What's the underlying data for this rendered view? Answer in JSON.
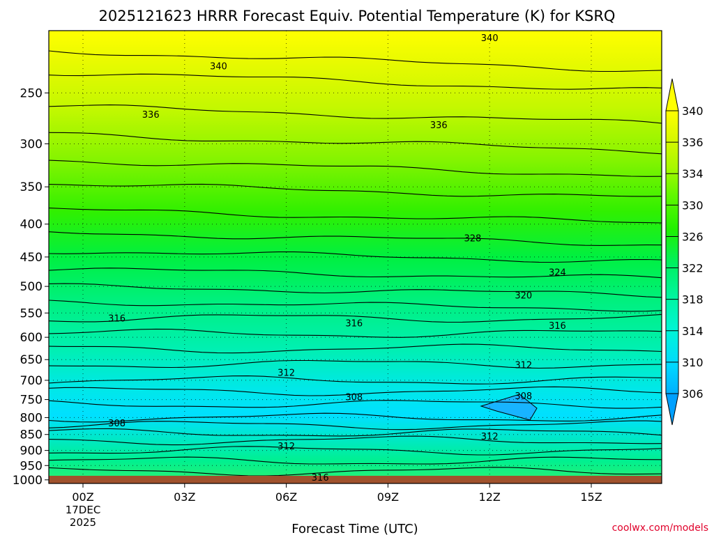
{
  "chart_data": {
    "type": "heatmap",
    "title": "2025121623 HRRR Forecast Equiv. Potential Temperature (K) for KSRQ",
    "xlabel": "Forecast Time (UTC)",
    "ylabel": "",
    "credit": "coolwx.com/models",
    "x_ticks": [
      {
        "label": "00Z",
        "hour": 0
      },
      {
        "label": "03Z",
        "hour": 3
      },
      {
        "label": "06Z",
        "hour": 6
      },
      {
        "label": "09Z",
        "hour": 9
      },
      {
        "label": "12Z",
        "hour": 12
      },
      {
        "label": "15Z",
        "hour": 15
      }
    ],
    "x_date_lines": [
      "17DEC",
      "2025"
    ],
    "xlim": [
      -1,
      17
    ],
    "y_ticks": [
      250,
      300,
      350,
      400,
      450,
      500,
      550,
      600,
      650,
      700,
      750,
      800,
      850,
      900,
      950,
      1000
    ],
    "y_scale": "log",
    "ylim": [
      1013,
      200
    ],
    "grid": true,
    "colorbar": {
      "position": "right",
      "labels": [
        "306",
        "310",
        "314",
        "318",
        "322",
        "326",
        "330",
        "334",
        "336",
        "340"
      ],
      "colors": [
        "#00b0ff",
        "#00e0ff",
        "#00f5d0",
        "#00f5a0",
        "#00f060",
        "#20f000",
        "#60f800",
        "#a8f800",
        "#d8f800",
        "#ffff00"
      ]
    },
    "profile_hour_00Z": {
      "pressure": [
        200,
        240,
        290,
        350,
        400,
        450,
        500,
        550,
        600,
        650,
        700,
        740,
        780,
        810,
        850,
        900,
        1000
      ],
      "theta_e": [
        341,
        338,
        336,
        333,
        330,
        326,
        322,
        318,
        316,
        314,
        312,
        309,
        307,
        308,
        312,
        314,
        316
      ]
    },
    "contour_labels": [
      {
        "text": "340",
        "hour": 12.0,
        "pressure": 205
      },
      {
        "text": "340",
        "hour": 4.0,
        "pressure": 227
      },
      {
        "text": "336",
        "hour": 2.0,
        "pressure": 270
      },
      {
        "text": "336",
        "hour": 10.5,
        "pressure": 280
      },
      {
        "text": "328",
        "hour": 11.5,
        "pressure": 420
      },
      {
        "text": "324",
        "hour": 14.0,
        "pressure": 475
      },
      {
        "text": "320",
        "hour": 13.0,
        "pressure": 516
      },
      {
        "text": "316",
        "hour": 1.0,
        "pressure": 560
      },
      {
        "text": "316",
        "hour": 8.0,
        "pressure": 570
      },
      {
        "text": "316",
        "hour": 14.0,
        "pressure": 575
      },
      {
        "text": "312",
        "hour": 6.0,
        "pressure": 680
      },
      {
        "text": "312",
        "hour": 13.0,
        "pressure": 662
      },
      {
        "text": "308",
        "hour": 8.0,
        "pressure": 742
      },
      {
        "text": "308",
        "hour": 13.0,
        "pressure": 740
      },
      {
        "text": "308",
        "hour": 1.0,
        "pressure": 815
      },
      {
        "text": "312",
        "hour": 12.0,
        "pressure": 855
      },
      {
        "text": "312",
        "hour": 6.0,
        "pressure": 885
      },
      {
        "text": "316",
        "hour": 7.0,
        "pressure": 990
      }
    ]
  }
}
